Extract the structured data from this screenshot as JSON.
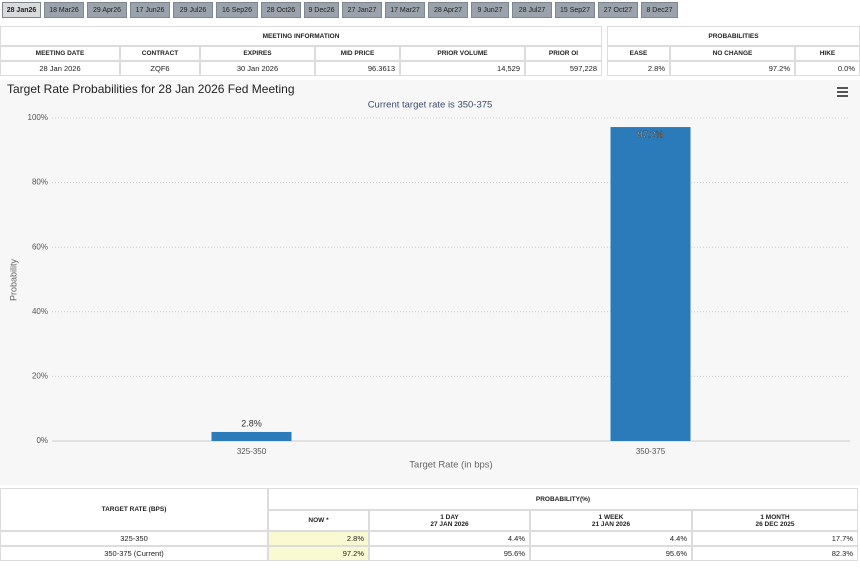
{
  "tabs": [
    "28 Jan26",
    "18 Mar26",
    "29 Apr26",
    "17 Jun26",
    "29 Jul26",
    "16 Sep26",
    "28 Oct26",
    "9 Dec26",
    "27 Jan27",
    "17 Mar27",
    "28 Apr27",
    "9 Jun27",
    "28 Jul27",
    "15 Sep27",
    "27 Oct27",
    "8 Dec27"
  ],
  "meeting_information": {
    "title": "MEETING INFORMATION",
    "columns": [
      "MEETING DATE",
      "CONTRACT",
      "EXPIRES",
      "MID PRICE",
      "PRIOR VOLUME",
      "PRIOR OI"
    ],
    "rows": [
      [
        "28 Jan 2026",
        "ZQF6",
        "30 Jan 2026",
        "96.3613",
        "14,529",
        "597,228"
      ]
    ]
  },
  "probabilities": {
    "title": "PROBABILITIES",
    "columns": [
      "EASE",
      "NO CHANGE",
      "HIKE"
    ],
    "rows": [
      [
        "2.8%",
        "97.2%",
        "0.0%"
      ]
    ]
  },
  "chart_data": {
    "type": "bar",
    "title": "Target Rate Probabilities for 28 Jan 2026 Fed Meeting",
    "subtitle": "Current target rate is 350-375",
    "x_label": "Target Rate (in bps)",
    "y_label": "Probability",
    "categories": [
      "325-350",
      "350-375"
    ],
    "values": [
      2.8,
      97.2
    ],
    "value_labels": [
      "2.8%",
      "97.2%"
    ],
    "color": "#2b7bba",
    "ylim": [
      0,
      100
    ],
    "yticks": [
      {
        "value": 0,
        "label": "0%"
      },
      {
        "value": 20,
        "label": "20%"
      },
      {
        "value": 40,
        "label": "40%"
      },
      {
        "value": 60,
        "label": "60%"
      },
      {
        "value": 80,
        "label": "80%"
      },
      {
        "value": 100,
        "label": "100%"
      }
    ],
    "grid": true
  },
  "probability_table": {
    "row_header": "TARGET RATE (BPS)",
    "title": "PROBABILITY(%)",
    "columns": [
      {
        "label": "NOW *"
      },
      {
        "label": "1 DAY",
        "date": "27 JAN 2026"
      },
      {
        "label": "1 WEEK",
        "date": "21 JAN 2026"
      },
      {
        "label": "1 MONTH",
        "date": "26 DEC 2025"
      }
    ],
    "rows": [
      [
        "325-350",
        "2.8%",
        "4.4%",
        "4.4%",
        "17.7%"
      ],
      [
        "350-375 (Current)",
        "97.2%",
        "95.6%",
        "95.6%",
        "82.3%"
      ]
    ]
  }
}
